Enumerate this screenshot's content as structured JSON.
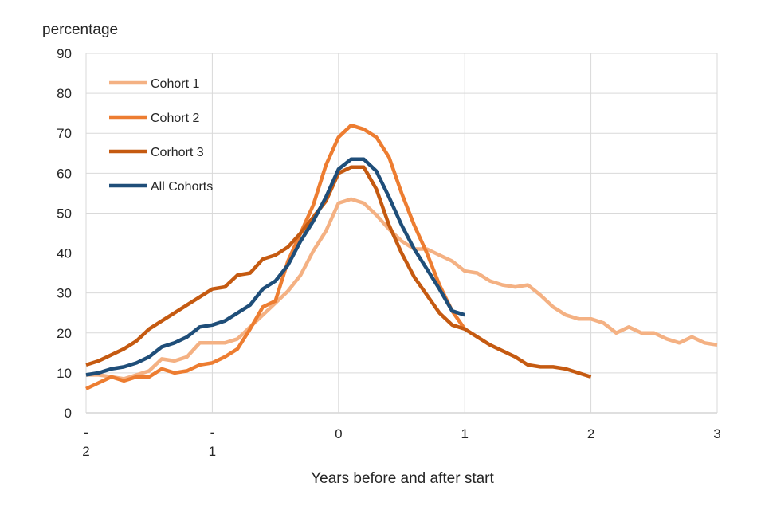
{
  "chart_data": {
    "type": "line",
    "ylabel": "percentage",
    "xlabel": "Years before and after start",
    "ylim": [
      0,
      90
    ],
    "xlim": [
      -2,
      3
    ],
    "yticks": [
      "0",
      "10",
      "20",
      "30",
      "40",
      "50",
      "60",
      "70",
      "80",
      "90"
    ],
    "xticks": [
      {
        "value": -2,
        "lines": [
          "-",
          "2"
        ]
      },
      {
        "value": -1,
        "lines": [
          "-",
          "1"
        ]
      },
      {
        "value": 0,
        "lines": [
          "0"
        ]
      },
      {
        "value": 1,
        "lines": [
          "1"
        ]
      },
      {
        "value": 2,
        "lines": [
          "2"
        ]
      },
      {
        "value": 3,
        "lines": [
          "3"
        ]
      }
    ],
    "grid": true,
    "legend_position": "top-left",
    "series": [
      {
        "name": "Cohort 1",
        "color": "#f4b183",
        "points": [
          [
            -2,
            9.5
          ],
          [
            -1.9,
            9.5
          ],
          [
            -1.8,
            9.0
          ],
          [
            -1.7,
            8.5
          ],
          [
            -1.6,
            9.5
          ],
          [
            -1.5,
            10.5
          ],
          [
            -1.4,
            13.5
          ],
          [
            -1.3,
            13.0
          ],
          [
            -1.2,
            14.0
          ],
          [
            -1.1,
            17.5
          ],
          [
            -1.0,
            17.5
          ],
          [
            -0.9,
            17.5
          ],
          [
            -0.8,
            18.5
          ],
          [
            -0.7,
            21.5
          ],
          [
            -0.6,
            24.5
          ],
          [
            -0.5,
            27.5
          ],
          [
            -0.4,
            30.5
          ],
          [
            -0.3,
            34.5
          ],
          [
            -0.2,
            40.5
          ],
          [
            -0.1,
            45.5
          ],
          [
            0.0,
            52.5
          ],
          [
            0.1,
            53.5
          ],
          [
            0.2,
            52.5
          ],
          [
            0.3,
            49.5
          ],
          [
            0.4,
            46.0
          ],
          [
            0.5,
            43.0
          ],
          [
            0.6,
            41.0
          ],
          [
            0.7,
            41.0
          ],
          [
            0.8,
            39.5
          ],
          [
            0.9,
            38.0
          ],
          [
            1.0,
            35.5
          ],
          [
            1.1,
            35.0
          ],
          [
            1.2,
            33.0
          ],
          [
            1.3,
            32.0
          ],
          [
            1.4,
            31.5
          ],
          [
            1.5,
            32.0
          ],
          [
            1.6,
            29.5
          ],
          [
            1.7,
            26.5
          ],
          [
            1.8,
            24.5
          ],
          [
            1.9,
            23.5
          ],
          [
            2.0,
            23.5
          ],
          [
            2.1,
            22.5
          ],
          [
            2.2,
            20.0
          ],
          [
            2.3,
            21.5
          ],
          [
            2.4,
            20.0
          ],
          [
            2.5,
            20.0
          ],
          [
            2.6,
            18.5
          ],
          [
            2.7,
            17.5
          ],
          [
            2.8,
            19.0
          ],
          [
            2.9,
            17.5
          ],
          [
            3.0,
            17.0
          ]
        ]
      },
      {
        "name": "Cohort 2",
        "color": "#ed7d31",
        "points": [
          [
            -2,
            6.0
          ],
          [
            -1.9,
            7.5
          ],
          [
            -1.8,
            9.0
          ],
          [
            -1.7,
            8.0
          ],
          [
            -1.6,
            9.0
          ],
          [
            -1.5,
            9.0
          ],
          [
            -1.4,
            11.0
          ],
          [
            -1.3,
            10.0
          ],
          [
            -1.2,
            10.5
          ],
          [
            -1.1,
            12.0
          ],
          [
            -1.0,
            12.5
          ],
          [
            -0.9,
            14.0
          ],
          [
            -0.8,
            16.0
          ],
          [
            -0.7,
            21.0
          ],
          [
            -0.6,
            26.5
          ],
          [
            -0.5,
            28.0
          ],
          [
            -0.4,
            38.0
          ],
          [
            -0.3,
            45.0
          ],
          [
            -0.2,
            52.0
          ],
          [
            -0.1,
            62.0
          ],
          [
            0.0,
            69.0
          ],
          [
            0.1,
            72.0
          ],
          [
            0.2,
            71.0
          ],
          [
            0.3,
            69.0
          ],
          [
            0.4,
            64.0
          ],
          [
            0.5,
            55.0
          ],
          [
            0.6,
            47.0
          ],
          [
            0.7,
            40.0
          ],
          [
            0.8,
            32.0
          ],
          [
            0.9,
            25.5
          ],
          [
            1.0,
            21.0
          ]
        ]
      },
      {
        "name": "Corhort 3",
        "color": "#c55a11",
        "points": [
          [
            -2,
            12.0
          ],
          [
            -1.9,
            13.0
          ],
          [
            -1.8,
            14.5
          ],
          [
            -1.7,
            16.0
          ],
          [
            -1.6,
            18.0
          ],
          [
            -1.5,
            21.0
          ],
          [
            -1.4,
            23.0
          ],
          [
            -1.3,
            25.0
          ],
          [
            -1.2,
            27.0
          ],
          [
            -1.1,
            29.0
          ],
          [
            -1.0,
            31.0
          ],
          [
            -0.9,
            31.5
          ],
          [
            -0.8,
            34.5
          ],
          [
            -0.7,
            35.0
          ],
          [
            -0.6,
            38.5
          ],
          [
            -0.5,
            39.5
          ],
          [
            -0.4,
            41.5
          ],
          [
            -0.3,
            45.0
          ],
          [
            -0.2,
            49.0
          ],
          [
            -0.1,
            53.0
          ],
          [
            0.0,
            60.0
          ],
          [
            0.1,
            61.5
          ],
          [
            0.2,
            61.5
          ],
          [
            0.3,
            56.0
          ],
          [
            0.4,
            47.0
          ],
          [
            0.5,
            40.0
          ],
          [
            0.6,
            34.0
          ],
          [
            0.7,
            29.5
          ],
          [
            0.8,
            25.0
          ],
          [
            0.9,
            22.0
          ],
          [
            1.0,
            21.0
          ],
          [
            1.1,
            19.0
          ],
          [
            1.2,
            17.0
          ],
          [
            1.3,
            15.5
          ],
          [
            1.4,
            14.0
          ],
          [
            1.5,
            12.0
          ],
          [
            1.6,
            11.5
          ],
          [
            1.7,
            11.5
          ],
          [
            1.8,
            11.0
          ],
          [
            1.9,
            10.0
          ],
          [
            2.0,
            9.0
          ]
        ]
      },
      {
        "name": "All Cohorts",
        "color": "#1f4e79",
        "points": [
          [
            -2,
            9.5
          ],
          [
            -1.9,
            10.0
          ],
          [
            -1.8,
            11.0
          ],
          [
            -1.7,
            11.5
          ],
          [
            -1.6,
            12.5
          ],
          [
            -1.5,
            14.0
          ],
          [
            -1.4,
            16.5
          ],
          [
            -1.3,
            17.5
          ],
          [
            -1.2,
            19.0
          ],
          [
            -1.1,
            21.5
          ],
          [
            -1.0,
            22.0
          ],
          [
            -0.9,
            23.0
          ],
          [
            -0.8,
            25.0
          ],
          [
            -0.7,
            27.0
          ],
          [
            -0.6,
            31.0
          ],
          [
            -0.5,
            33.0
          ],
          [
            -0.4,
            37.0
          ],
          [
            -0.3,
            43.0
          ],
          [
            -0.2,
            48.0
          ],
          [
            -0.1,
            54.0
          ],
          [
            0.0,
            61.0
          ],
          [
            0.1,
            63.5
          ],
          [
            0.2,
            63.5
          ],
          [
            0.3,
            60.5
          ],
          [
            0.4,
            54.0
          ],
          [
            0.5,
            47.0
          ],
          [
            0.6,
            41.0
          ],
          [
            0.7,
            36.0
          ],
          [
            0.8,
            31.0
          ],
          [
            0.9,
            25.5
          ],
          [
            1.0,
            24.5
          ]
        ]
      }
    ]
  }
}
